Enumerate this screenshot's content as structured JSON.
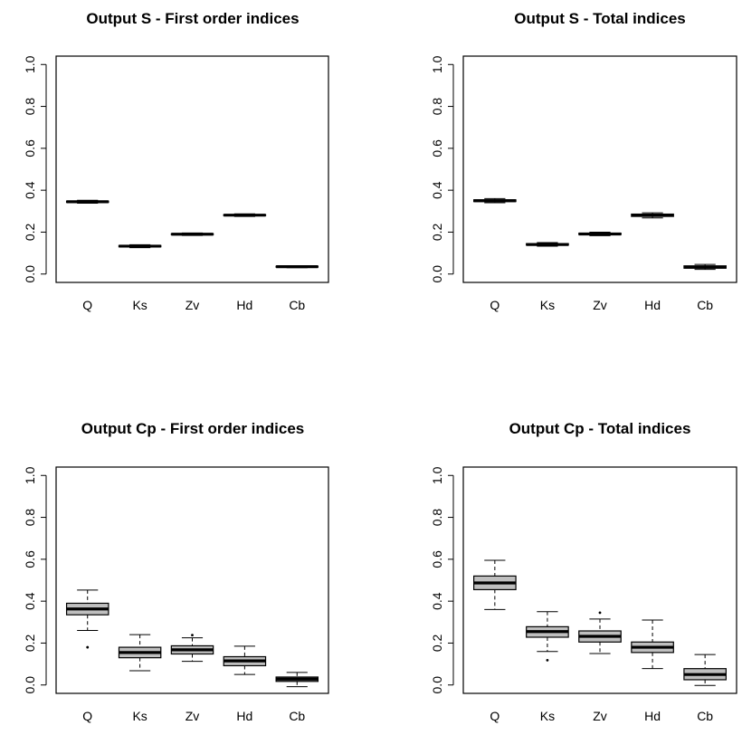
{
  "chart_data": [
    {
      "type": "box",
      "title": "Output S - First order indices",
      "categories": [
        "Q",
        "Ks",
        "Zv",
        "Hd",
        "Cb"
      ],
      "y_ticks": [
        "0.0",
        "0.2",
        "0.4",
        "0.6",
        "0.8",
        "1.0"
      ],
      "ylim": [
        0,
        1
      ],
      "boxes": [
        {
          "min": 0.338,
          "q1": 0.342,
          "median": 0.345,
          "q3": 0.348,
          "max": 0.352
        },
        {
          "min": 0.126,
          "q1": 0.13,
          "median": 0.133,
          "q3": 0.136,
          "max": 0.14
        },
        {
          "min": 0.184,
          "q1": 0.188,
          "median": 0.19,
          "q3": 0.192,
          "max": 0.196
        },
        {
          "min": 0.275,
          "q1": 0.279,
          "median": 0.281,
          "q3": 0.283,
          "max": 0.287
        },
        {
          "min": 0.03,
          "q1": 0.033,
          "median": 0.035,
          "q3": 0.037,
          "max": 0.04
        }
      ]
    },
    {
      "type": "box",
      "title": "Output S - Total indices",
      "categories": [
        "Q",
        "Ks",
        "Zv",
        "Hd",
        "Cb"
      ],
      "y_ticks": [
        "0.0",
        "0.2",
        "0.4",
        "0.6",
        "0.8",
        "1.0"
      ],
      "ylim": [
        0,
        1
      ],
      "boxes": [
        {
          "min": 0.34,
          "q1": 0.346,
          "median": 0.35,
          "q3": 0.354,
          "max": 0.36
        },
        {
          "min": 0.133,
          "q1": 0.138,
          "median": 0.141,
          "q3": 0.145,
          "max": 0.15
        },
        {
          "min": 0.183,
          "q1": 0.188,
          "median": 0.191,
          "q3": 0.195,
          "max": 0.2
        },
        {
          "min": 0.268,
          "q1": 0.275,
          "median": 0.28,
          "q3": 0.286,
          "max": 0.292
        },
        {
          "min": 0.022,
          "q1": 0.028,
          "median": 0.033,
          "q3": 0.039,
          "max": 0.046
        }
      ]
    },
    {
      "type": "box",
      "title": "Output Cp - First order indices",
      "categories": [
        "Q",
        "Ks",
        "Zv",
        "Hd",
        "Cb"
      ],
      "y_ticks": [
        "0.0",
        "0.2",
        "0.4",
        "0.6",
        "0.8",
        "1.0"
      ],
      "ylim": [
        0,
        1
      ],
      "boxes": [
        {
          "min": 0.26,
          "q1": 0.335,
          "median": 0.363,
          "q3": 0.39,
          "max": 0.453,
          "outliers": [
            0.18
          ]
        },
        {
          "min": 0.068,
          "q1": 0.13,
          "median": 0.155,
          "q3": 0.18,
          "max": 0.24
        },
        {
          "min": 0.113,
          "q1": 0.148,
          "median": 0.168,
          "q3": 0.187,
          "max": 0.225,
          "outliers": [
            0.238
          ]
        },
        {
          "min": 0.05,
          "q1": 0.092,
          "median": 0.115,
          "q3": 0.135,
          "max": 0.185
        },
        {
          "min": -0.008,
          "q1": 0.017,
          "median": 0.028,
          "q3": 0.038,
          "max": 0.06
        }
      ]
    },
    {
      "type": "box",
      "title": "Output Cp - Total indices",
      "categories": [
        "Q",
        "Ks",
        "Zv",
        "Hd",
        "Cb"
      ],
      "y_ticks": [
        "0.0",
        "0.2",
        "0.4",
        "0.6",
        "0.8",
        "1.0"
      ],
      "ylim": [
        0,
        1
      ],
      "boxes": [
        {
          "min": 0.36,
          "q1": 0.455,
          "median": 0.487,
          "q3": 0.52,
          "max": 0.595
        },
        {
          "min": 0.16,
          "q1": 0.228,
          "median": 0.255,
          "q3": 0.278,
          "max": 0.35,
          "outliers": [
            0.118
          ]
        },
        {
          "min": 0.15,
          "q1": 0.205,
          "median": 0.232,
          "q3": 0.258,
          "max": 0.315,
          "outliers": [
            0.345
          ]
        },
        {
          "min": 0.078,
          "q1": 0.155,
          "median": 0.18,
          "q3": 0.205,
          "max": 0.31
        },
        {
          "min": -0.002,
          "q1": 0.025,
          "median": 0.05,
          "q3": 0.078,
          "max": 0.145
        }
      ]
    }
  ]
}
